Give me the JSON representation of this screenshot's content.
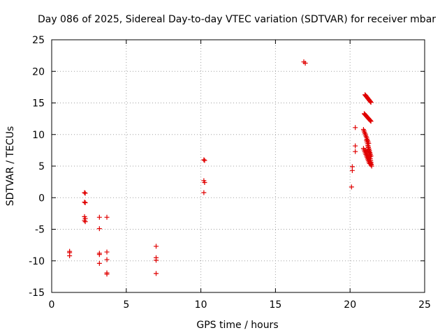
{
  "chart_data": {
    "type": "scatter",
    "title": "Day 086 of 2025, Sidereal Day-to-day VTEC variation (SDTVAR) for receiver mbar",
    "xlabel": "GPS time / hours",
    "ylabel": "SDTVAR / TECUs",
    "xlim": [
      0,
      25
    ],
    "ylim": [
      -15,
      25
    ],
    "xticks": [
      0,
      5,
      10,
      15,
      20,
      25
    ],
    "yticks": [
      -15,
      -10,
      -5,
      0,
      5,
      10,
      15,
      20,
      25
    ],
    "grid": true,
    "marker": "plus",
    "color": "#e00000",
    "series": [
      {
        "x": [
          1.2,
          1.2,
          1.2,
          2.2,
          2.25,
          2.2,
          2.25,
          2.2,
          2.25,
          2.2,
          2.25,
          3.2,
          3.2,
          3.2,
          3.2,
          3.2,
          3.7,
          3.7,
          3.7,
          3.7,
          3.7,
          7.0,
          7.0,
          7.0,
          7.0,
          10.2,
          10.25,
          10.2,
          10.25,
          10.2,
          16.9,
          17.0,
          20.1,
          20.15,
          20.15,
          20.35,
          20.35,
          20.35
        ],
        "y": [
          -8.5,
          -8.7,
          -9.2,
          0.8,
          0.7,
          -0.7,
          -0.8,
          -3.0,
          -3.3,
          -3.6,
          -3.8,
          -3.1,
          -4.9,
          -8.8,
          -9.0,
          -10.4,
          -3.1,
          -8.6,
          -9.8,
          -11.9,
          -12.1,
          -7.7,
          -9.5,
          -9.9,
          -12.0,
          6.0,
          5.9,
          2.7,
          2.4,
          0.8,
          21.5,
          21.3,
          1.7,
          4.3,
          4.9,
          11.1,
          8.2,
          7.3
        ]
      }
    ],
    "curves": [
      {
        "x_start": 21.0,
        "x_end": 21.4,
        "y_start": 16.3,
        "y_end": 15.1,
        "count": 14
      },
      {
        "x_start": 20.95,
        "x_end": 21.4,
        "y_start": 13.3,
        "y_end": 12.1,
        "count": 14
      },
      {
        "x_start": 20.9,
        "x_end": 21.25,
        "y_start": 10.8,
        "y_end": 8.6,
        "count": 11
      },
      {
        "x_start": 21.1,
        "x_end": 21.4,
        "y_start": 9.1,
        "y_end": 6.6,
        "count": 10
      },
      {
        "x_start": 20.9,
        "x_end": 21.3,
        "y_start": 7.8,
        "y_end": 5.4,
        "count": 11
      },
      {
        "x_start": 21.05,
        "x_end": 21.4,
        "y_start": 7.5,
        "y_end": 5.2,
        "count": 11
      },
      {
        "x_start": 21.2,
        "x_end": 21.45,
        "y_start": 8.2,
        "y_end": 5.0,
        "count": 12
      }
    ]
  }
}
